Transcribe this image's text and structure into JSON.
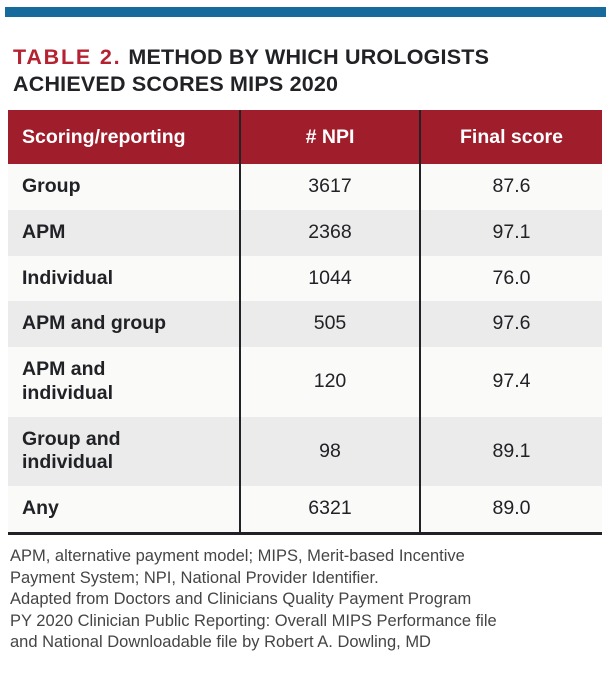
{
  "colors": {
    "accent_bar_blue": "#176B9C",
    "header_red": "#A01D2B",
    "table_number_red": "#B52231",
    "ink": "#212226",
    "row_white": "#FAFAF9",
    "row_alt_gray": "#EBEBEB",
    "footnote_gray": "#454545"
  },
  "header": {
    "table_label": "TABLE 2.",
    "title": "METHOD BY WHICH UROLOGISTS ACHIEVED SCORES MIPS 2020"
  },
  "table": {
    "columns": [
      "Scoring/reporting",
      "# NPI",
      "Final score"
    ],
    "rows": [
      {
        "label": "Group",
        "npi": "3617",
        "score": "87.6"
      },
      {
        "label": "APM",
        "npi": "2368",
        "score": "97.1"
      },
      {
        "label": "Individual",
        "npi": "1044",
        "score": "76.0"
      },
      {
        "label": "APM and group",
        "npi": "505",
        "score": "97.6"
      },
      {
        "label": "APM and individual",
        "npi": "120",
        "score": "97.4"
      },
      {
        "label": "Group and individual",
        "npi": "98",
        "score": "89.1"
      },
      {
        "label": "Any",
        "npi": "6321",
        "score": "89.0"
      }
    ]
  },
  "footer": {
    "lines": [
      "APM, alternative payment model; MIPS, Merit-based Incentive",
      "Payment System; NPI, National Provider Identifier.",
      "Adapted from Doctors and Clinicians Quality Payment Program",
      "PY 2020 Clinician Public Reporting: Overall MIPS Performance file",
      "and National Downloadable file by Robert A. Dowling, MD"
    ]
  },
  "chart_data": {
    "type": "table",
    "title": "TABLE 2. METHOD BY WHICH UROLOGISTS ACHIEVED SCORES MIPS 2020",
    "columns": [
      "Scoring/reporting",
      "# NPI",
      "Final score"
    ],
    "rows": [
      {
        "scoring_reporting": "Group",
        "npi": 3617,
        "final_score": 87.6
      },
      {
        "scoring_reporting": "APM",
        "npi": 2368,
        "final_score": 97.1
      },
      {
        "scoring_reporting": "Individual",
        "npi": 1044,
        "final_score": 76.0
      },
      {
        "scoring_reporting": "APM and group",
        "npi": 505,
        "final_score": 97.6
      },
      {
        "scoring_reporting": "APM and individual",
        "npi": 120,
        "final_score": 97.4
      },
      {
        "scoring_reporting": "Group and individual",
        "npi": 98,
        "final_score": 89.1
      },
      {
        "scoring_reporting": "Any",
        "npi": 6321,
        "final_score": 89.0
      }
    ],
    "footnotes": [
      "APM, alternative payment model; MIPS, Merit-based Incentive Payment System; NPI, National Provider Identifier.",
      "Adapted from Doctors and Clinicians Quality Payment Program PY 2020 Clinician Public Reporting: Overall MIPS Performance file and National Downloadable file by Robert A. Dowling, MD"
    ]
  }
}
